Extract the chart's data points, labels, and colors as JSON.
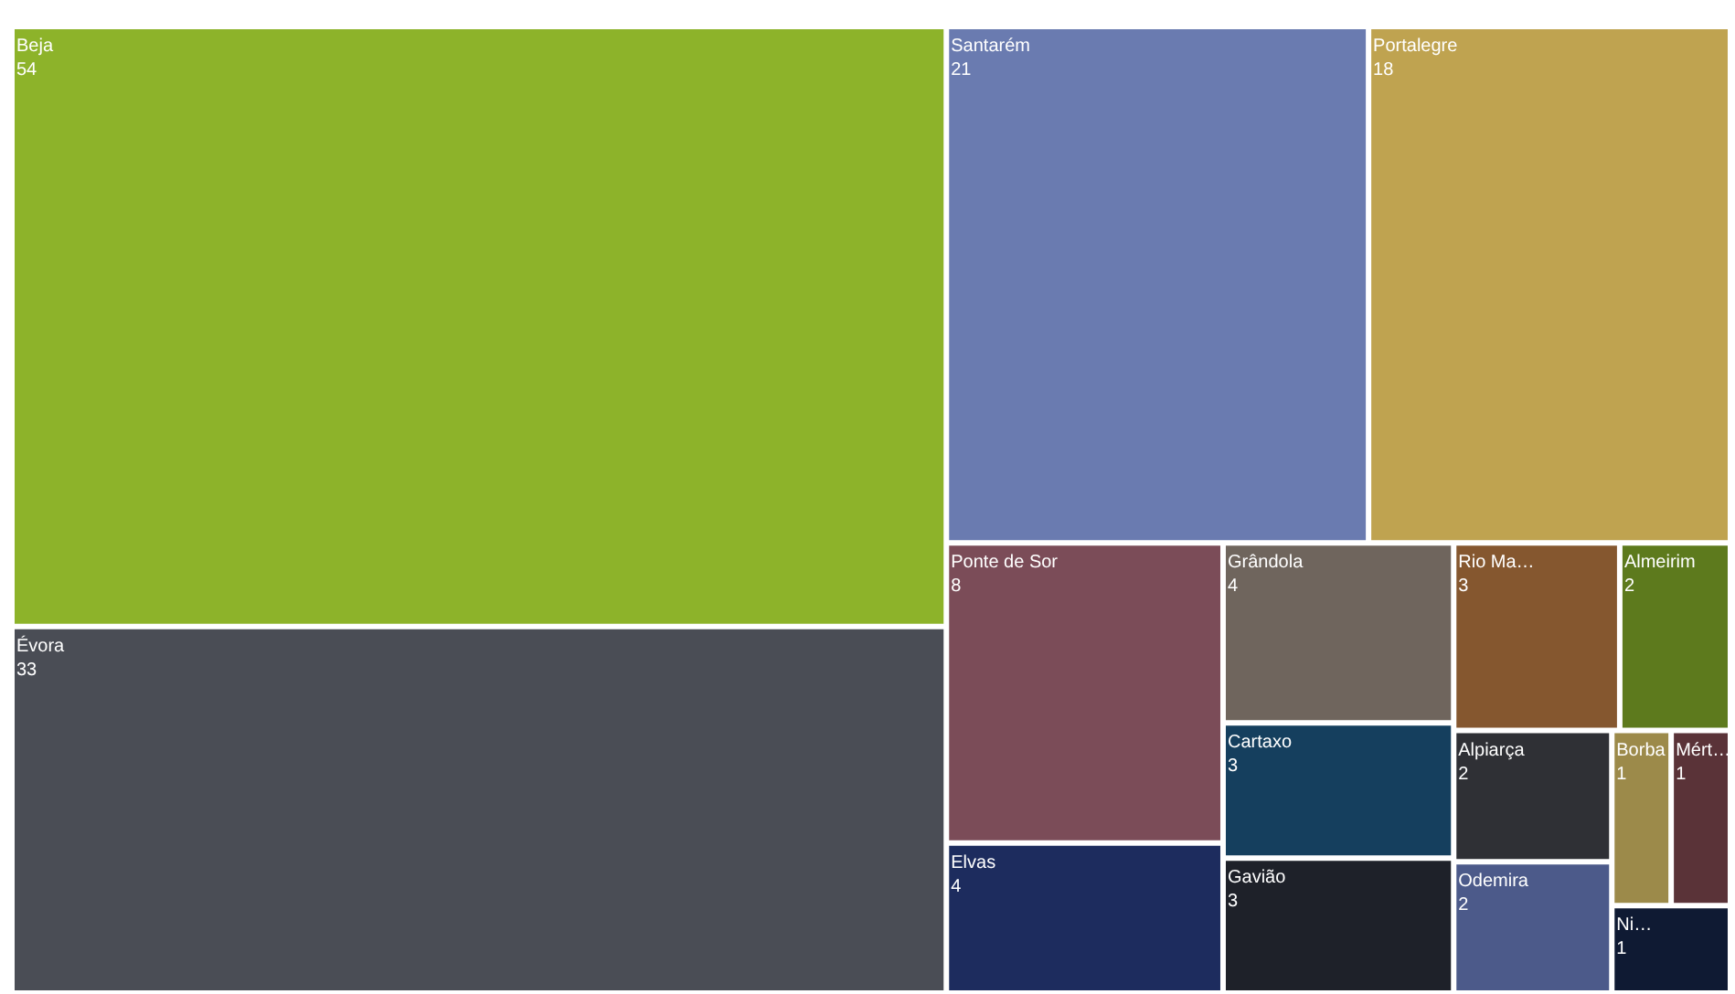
{
  "chart_data": {
    "type": "other",
    "categories": [
      "Beja",
      "Évora",
      "Santarém",
      "Portalegre",
      "Ponte de Sor",
      "Rio Ma…",
      "Gavião",
      "Cartaxo",
      "Grândola",
      "Elvas",
      "Odemira",
      "Alpiarça",
      "Almeirim",
      "Ni…",
      "Mért…",
      "Borba"
    ],
    "values": [
      54,
      33,
      21,
      18,
      8,
      3,
      3,
      3,
      4,
      4,
      2,
      2,
      2,
      1,
      1,
      1
    ],
    "colors": [
      "#8db32a",
      "#4a4d55",
      "#6a7bb0",
      "#bfa350",
      "#7b4c58",
      "#85572f",
      "#1e2129",
      "#153f5e",
      "#6f655d",
      "#1d2c5e",
      "#4c5a8a",
      "#2f3035",
      "#5d7a1d",
      "#0f1a33",
      "#5a3338",
      "#9c8a4a"
    ],
    "data_labels": true
  }
}
